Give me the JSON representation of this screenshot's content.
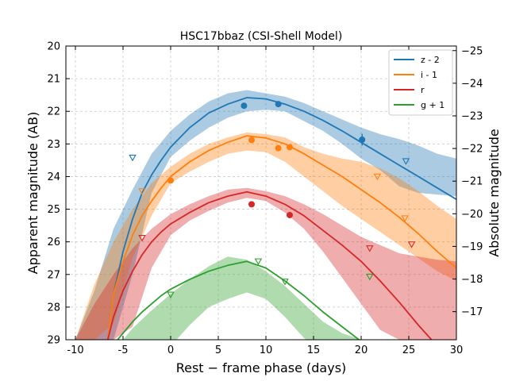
{
  "chart_data": {
    "type": "line",
    "title": "HSC17bbaz (CSI-Shell Model)",
    "xlabel": "Rest − frame phase (days)",
    "ylabel": "Apparent magnitude (AB)",
    "y2label": "Absolute magnitude",
    "xlim": [
      -11,
      30
    ],
    "ylim": [
      29,
      20
    ],
    "y2lim": [
      -16.14,
      -25.14
    ],
    "xticks": [
      -10,
      -5,
      0,
      5,
      10,
      15,
      20,
      25,
      30
    ],
    "yticks": [
      20,
      21,
      22,
      23,
      24,
      25,
      26,
      27,
      28,
      29
    ],
    "y2ticks": [
      -17,
      -18,
      -19,
      -20,
      -21,
      -22,
      -23,
      -24,
      -25
    ],
    "grid": true,
    "legend_position": "top-right",
    "series": [
      {
        "name": "z - 2",
        "color": "#1f77b4",
        "model_x": [
          -6.6,
          -6.0,
          -5.0,
          -4.0,
          -3.0,
          -2.0,
          -1.0,
          0.0,
          2.0,
          4.0,
          6.0,
          8.0,
          10.0,
          12.0,
          14.0,
          16.0,
          18.0,
          20.0,
          22.0,
          24.0,
          26.0,
          28.0,
          30.0
        ],
        "model_y": [
          29.0,
          27.6,
          26.3,
          25.3,
          24.5,
          23.95,
          23.5,
          23.1,
          22.5,
          22.05,
          21.78,
          21.58,
          21.62,
          21.78,
          22.0,
          22.28,
          22.6,
          22.95,
          23.3,
          23.65,
          24.0,
          24.35,
          24.7
        ],
        "band_x": [
          -10.0,
          -8.0,
          -6.0,
          -4.0,
          -2.0,
          0.0,
          2.0,
          4.0,
          6.0,
          8.0,
          10.0,
          12.0,
          14.0,
          16.0,
          18.0,
          20.0,
          22.0,
          24.0,
          26.0,
          28.0,
          30.0
        ],
        "band_upper": [
          29.0,
          27.5,
          25.6,
          24.4,
          23.3,
          22.6,
          22.1,
          21.7,
          21.45,
          21.35,
          21.45,
          21.55,
          21.75,
          22.0,
          22.25,
          22.5,
          22.7,
          22.85,
          23.05,
          23.3,
          23.45
        ],
        "band_lower": [
          29.0,
          29.0,
          29.0,
          27.0,
          24.5,
          23.4,
          22.9,
          22.5,
          22.2,
          22.0,
          21.95,
          22.0,
          22.3,
          22.6,
          23.0,
          23.45,
          23.8,
          24.3,
          24.5,
          24.55,
          24.6
        ],
        "detections": [
          {
            "x": 7.7,
            "y": 21.83
          },
          {
            "x": 11.3,
            "y": 21.78
          },
          {
            "x": 20.1,
            "y": 22.87,
            "err": 0.18
          }
        ],
        "upper_limits": [
          {
            "x": -4.0,
            "y": 23.42
          },
          {
            "x": 24.7,
            "y": 23.53
          }
        ]
      },
      {
        "name": "i - 1",
        "color": "#ff7f0e",
        "model_x": [
          -6.6,
          -6.0,
          -5.0,
          -4.0,
          -3.0,
          -2.0,
          -1.0,
          0.0,
          2.0,
          4.0,
          6.0,
          8.0,
          10.0,
          12.0,
          14.0,
          16.0,
          18.0,
          20.0,
          22.0,
          24.0,
          26.0,
          28.0,
          30.0
        ],
        "model_y": [
          29.0,
          27.6,
          26.6,
          25.8,
          25.2,
          24.75,
          24.35,
          24.0,
          23.55,
          23.2,
          22.95,
          22.75,
          22.82,
          23.0,
          23.3,
          23.65,
          24.0,
          24.4,
          24.8,
          25.25,
          25.75,
          26.3,
          26.8
        ],
        "band_x": [
          -10.0,
          -8.0,
          -6.0,
          -4.0,
          -2.0,
          0.0,
          2.0,
          4.0,
          6.0,
          8.0,
          10.0,
          12.0,
          14.0,
          16.0,
          18.0,
          20.0,
          22.0,
          24.0,
          26.0,
          28.0,
          30.0
        ],
        "band_upper": [
          29.0,
          27.3,
          26.0,
          25.0,
          24.2,
          23.7,
          23.3,
          23.0,
          22.8,
          22.65,
          22.7,
          22.8,
          23.1,
          23.3,
          23.45,
          23.55,
          23.75,
          24.05,
          24.45,
          24.9,
          25.3
        ],
        "band_lower": [
          29.0,
          29.0,
          28.5,
          26.5,
          25.2,
          24.2,
          23.85,
          23.55,
          23.3,
          23.2,
          23.25,
          23.55,
          24.0,
          24.45,
          24.9,
          25.3,
          25.7,
          26.1,
          26.5,
          26.9,
          27.2
        ],
        "detections": [
          {
            "x": 0.0,
            "y": 24.12
          },
          {
            "x": 8.5,
            "y": 22.88
          },
          {
            "x": 11.3,
            "y": 23.13
          },
          {
            "x": 12.5,
            "y": 23.1
          }
        ],
        "upper_limits": [
          {
            "x": -3.0,
            "y": 24.45
          },
          {
            "x": 21.7,
            "y": 24.0
          },
          {
            "x": 24.6,
            "y": 25.28
          }
        ]
      },
      {
        "name": "r",
        "color": "#d62728",
        "model_x": [
          -6.6,
          -6.0,
          -5.0,
          -4.0,
          -3.0,
          -2.0,
          -1.0,
          0.0,
          2.0,
          4.0,
          6.0,
          8.0,
          10.0,
          12.0,
          14.0,
          16.0,
          18.0,
          20.0,
          22.0,
          24.0,
          26.0,
          28.0
        ],
        "model_y": [
          29.0,
          28.3,
          27.5,
          26.9,
          26.4,
          26.0,
          25.7,
          25.45,
          25.1,
          24.8,
          24.6,
          24.47,
          24.6,
          24.85,
          25.2,
          25.65,
          26.1,
          26.6,
          27.2,
          27.85,
          28.55,
          29.2
        ],
        "band_x": [
          -10.0,
          -8.0,
          -6.0,
          -4.0,
          -2.0,
          0.0,
          2.0,
          4.0,
          6.0,
          8.0,
          10.0,
          12.0,
          14.0,
          16.0,
          18.0,
          20.0,
          22.0,
          24.0,
          26.0,
          28.0,
          30.0
        ],
        "band_upper": [
          29.0,
          27.9,
          27.0,
          26.2,
          25.6,
          25.15,
          24.85,
          24.6,
          24.4,
          24.35,
          24.45,
          24.6,
          24.85,
          25.15,
          25.5,
          25.85,
          26.1,
          26.35,
          26.45,
          26.55,
          26.6
        ],
        "band_lower": [
          29.0,
          29.0,
          29.0,
          28.6,
          26.8,
          25.8,
          25.35,
          25.05,
          24.8,
          24.65,
          24.75,
          25.1,
          25.6,
          26.3,
          27.1,
          27.9,
          28.7,
          29.0,
          29.0,
          29.0,
          29.0
        ],
        "detections": [
          {
            "x": 8.5,
            "y": 24.85
          },
          {
            "x": 12.5,
            "y": 25.18
          }
        ],
        "upper_limits": [
          {
            "x": -3.0,
            "y": 25.88
          },
          {
            "x": 20.9,
            "y": 26.2
          },
          {
            "x": 25.3,
            "y": 26.08
          }
        ]
      },
      {
        "name": "g + 1",
        "color": "#2ca02c",
        "model_x": [
          -6.2,
          -6.0,
          -5.0,
          -4.0,
          -3.0,
          -2.0,
          -1.0,
          0.0,
          2.0,
          4.0,
          6.0,
          8.0,
          10.0,
          12.0,
          14.0,
          16.0,
          18.0,
          20.0,
          21.0
        ],
        "model_y": [
          29.3,
          29.15,
          28.8,
          28.45,
          28.15,
          27.9,
          27.65,
          27.45,
          27.15,
          26.9,
          26.72,
          26.6,
          26.8,
          27.2,
          27.65,
          28.15,
          28.6,
          29.05,
          29.25
        ],
        "band_x": [
          -5.0,
          -4.0,
          -2.0,
          0.0,
          2.0,
          4.0,
          6.0,
          8.0,
          10.0,
          12.0,
          14.0,
          16.0,
          18.0,
          20.0
        ],
        "band_upper": [
          29.0,
          28.65,
          28.1,
          27.6,
          27.15,
          26.75,
          26.45,
          26.55,
          26.9,
          27.35,
          27.9,
          28.45,
          28.8,
          29.0
        ],
        "band_lower": [
          29.4,
          29.4,
          29.4,
          29.2,
          28.55,
          28.0,
          27.75,
          27.55,
          27.75,
          28.3,
          28.95,
          29.4,
          29.4,
          29.4
        ],
        "detections": [],
        "upper_limits": [
          {
            "x": 0.0,
            "y": 27.62
          },
          {
            "x": 9.2,
            "y": 26.6
          },
          {
            "x": 12.0,
            "y": 27.22
          },
          {
            "x": 20.9,
            "y": 27.07
          }
        ]
      }
    ]
  }
}
